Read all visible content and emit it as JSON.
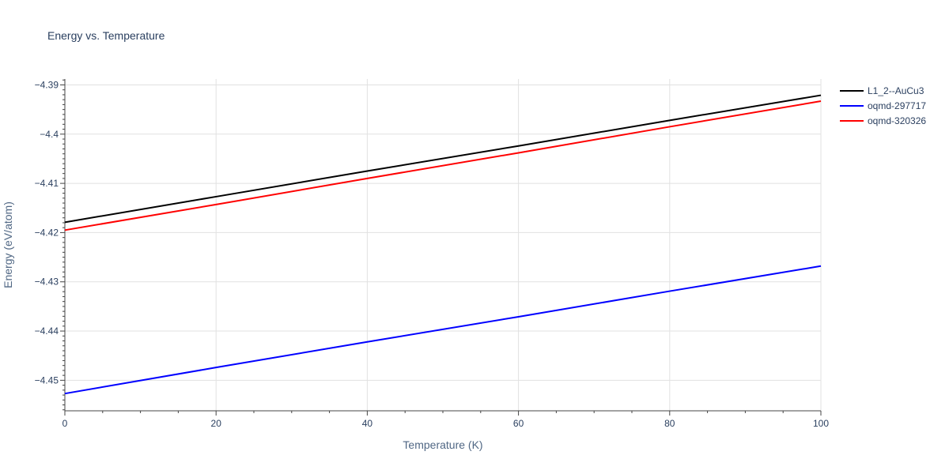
{
  "chart_data": {
    "type": "line",
    "title": "Energy vs. Temperature",
    "xlabel": "Temperature (K)",
    "ylabel": "Energy (eV/atom)",
    "xlim": [
      0,
      100
    ],
    "ylim": [
      -4.4562,
      -4.3888
    ],
    "x_ticks": [
      0,
      20,
      40,
      60,
      80,
      100
    ],
    "x_tick_labels": [
      "0",
      "20",
      "40",
      "60",
      "80",
      "100"
    ],
    "y_ticks": [
      -4.39,
      -4.4,
      -4.41,
      -4.42,
      -4.43,
      -4.44,
      -4.45
    ],
    "y_tick_labels": [
      "−4.39",
      "−4.4",
      "−4.41",
      "−4.42",
      "−4.43",
      "−4.44",
      "−4.45"
    ],
    "grid": true,
    "legend_position": "top-right, outside plot",
    "series": [
      {
        "name": "L1_2--AuCu3",
        "color": "#000000",
        "x": [
          0,
          20,
          40,
          60,
          80,
          100
        ],
        "y": [
          -4.4179,
          -4.4127,
          -4.4075,
          -4.4024,
          -4.3972,
          -4.3921
        ]
      },
      {
        "name": "oqmd-297717",
        "color": "#0000ff",
        "x": [
          0,
          20,
          40,
          60,
          80,
          100
        ],
        "y": [
          -4.4527,
          -4.4474,
          -4.4422,
          -4.4371,
          -4.4319,
          -4.4268
        ]
      },
      {
        "name": "oqmd-320326",
        "color": "#ff0000",
        "x": [
          0,
          20,
          40,
          60,
          80,
          100
        ],
        "y": [
          -4.4195,
          -4.4143,
          -4.409,
          -4.4038,
          -4.3985,
          -4.3933
        ]
      }
    ]
  }
}
